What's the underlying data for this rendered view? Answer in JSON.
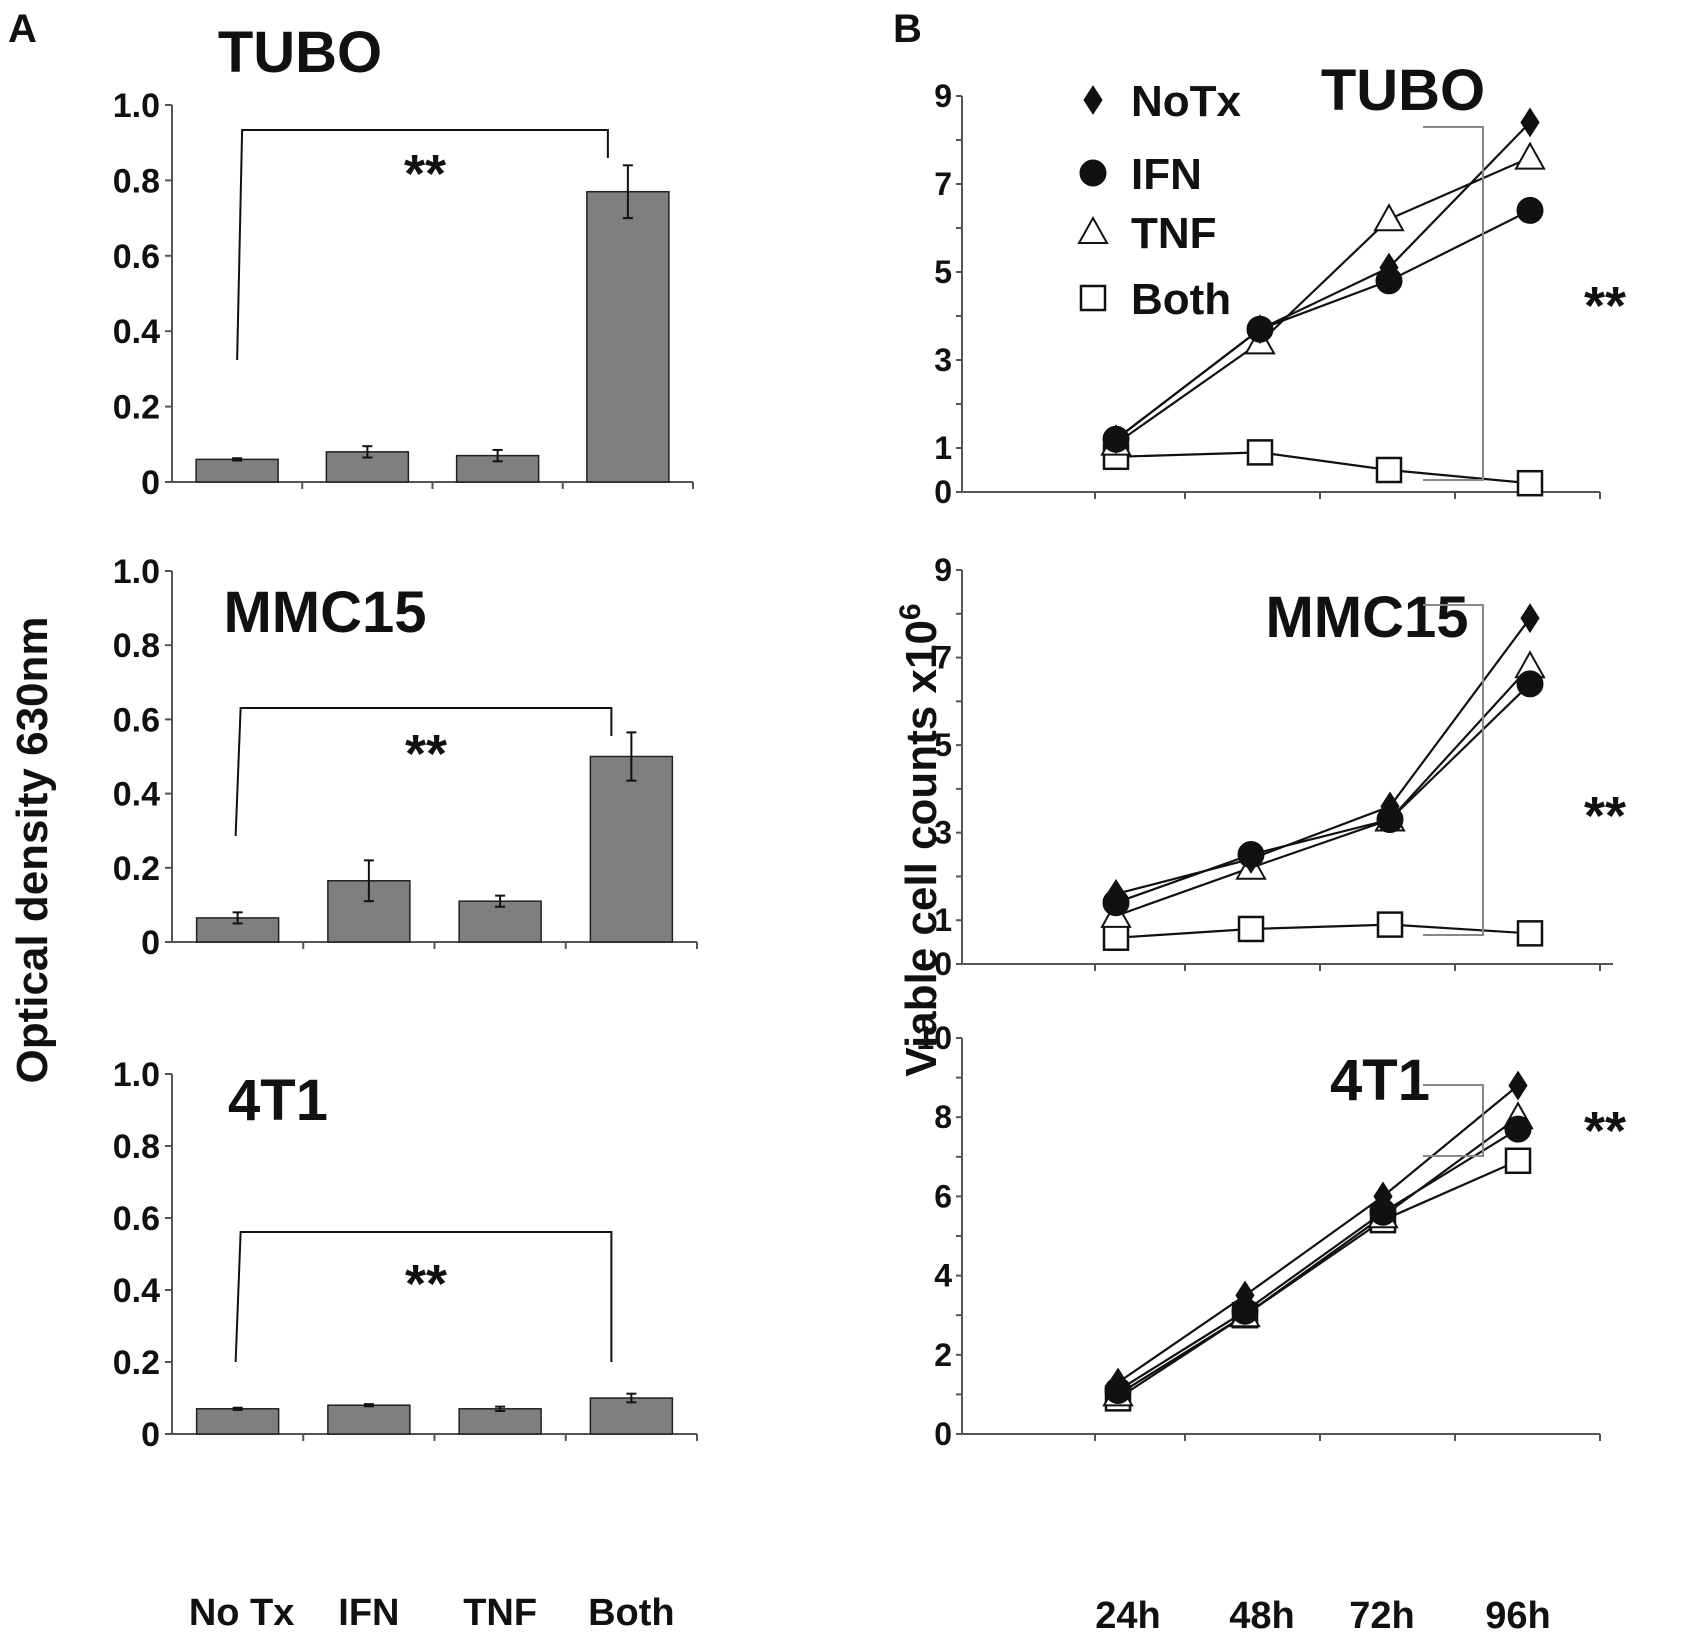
{
  "panel_labels": [
    "A",
    "B"
  ],
  "panel_a": {
    "ylabel": "Optical density 630nm",
    "categories": [
      "No Tx",
      "IFN",
      "TNF",
      "Both"
    ]
  },
  "panel_b": {
    "ylabel": "Viable cell counts x10",
    "ylabel_sup": "6",
    "timepoints": [
      "24h",
      "48h",
      "72h",
      "96h"
    ],
    "legend": [
      {
        "label": "NoTx",
        "marker": "diamond-filled"
      },
      {
        "label": "IFN",
        "marker": "circle-filled"
      },
      {
        "label": "TNF",
        "marker": "triangle-open"
      },
      {
        "label": "Both",
        "marker": "square-open"
      }
    ]
  },
  "colors": {
    "bar_fill": "#7f7f7f",
    "ink": "#111111"
  },
  "chart_data": [
    {
      "type": "bar",
      "panel": "A",
      "title": "TUBO",
      "categories": [
        "No Tx",
        "IFN",
        "TNF",
        "Both"
      ],
      "values": [
        0.06,
        0.08,
        0.07,
        0.77
      ],
      "errors": [
        0.003,
        0.015,
        0.015,
        0.07
      ],
      "ylim": [
        0,
        1.0
      ],
      "yticks": [
        "0",
        "0.2",
        "0.4",
        "0.6",
        "0.8",
        "1.0"
      ],
      "yticks_values": [
        0,
        0.2,
        0.4,
        0.6,
        0.8,
        1.0
      ],
      "significance": "**"
    },
    {
      "type": "bar",
      "panel": "A",
      "title": "MMC15",
      "categories": [
        "No Tx",
        "IFN",
        "TNF",
        "Both"
      ],
      "values": [
        0.065,
        0.165,
        0.11,
        0.5
      ],
      "errors": [
        0.015,
        0.055,
        0.015,
        0.065
      ],
      "ylim": [
        0,
        1.0
      ],
      "yticks": [
        "0",
        "0.2",
        "0.4",
        "0.6",
        "0.8",
        "1.0"
      ],
      "yticks_values": [
        0,
        0.2,
        0.4,
        0.6,
        0.8,
        1.0
      ],
      "significance": "**"
    },
    {
      "type": "bar",
      "panel": "A",
      "title": "4T1",
      "categories": [
        "No Tx",
        "IFN",
        "TNF",
        "Both"
      ],
      "values": [
        0.07,
        0.08,
        0.07,
        0.1
      ],
      "errors": [
        0.003,
        0.003,
        0.006,
        0.012
      ],
      "ylim": [
        0,
        1.0
      ],
      "yticks": [
        "0",
        "0.2",
        "0.4",
        "0.6",
        "0.8",
        "1.0"
      ],
      "yticks_values": [
        0,
        0.2,
        0.4,
        0.6,
        0.8,
        1.0
      ],
      "significance": "**"
    },
    {
      "type": "line",
      "panel": "B",
      "title": "TUBO",
      "x": [
        "24h",
        "48h",
        "72h",
        "96h"
      ],
      "ylim": [
        0,
        9
      ],
      "yticks": [
        "0",
        "1",
        "3",
        "5",
        "7",
        "9"
      ],
      "yticks_values": [
        0,
        1,
        3,
        5,
        7,
        9
      ],
      "series": [
        {
          "name": "NoTx",
          "values": [
            1.2,
            3.7,
            5.1,
            8.4
          ]
        },
        {
          "name": "IFN",
          "values": [
            1.2,
            3.7,
            4.8,
            6.4
          ]
        },
        {
          "name": "TNF",
          "values": [
            1.1,
            3.4,
            6.2,
            7.6
          ]
        },
        {
          "name": "Both",
          "values": [
            0.8,
            0.9,
            0.5,
            0.2
          ]
        }
      ],
      "significance": "**"
    },
    {
      "type": "line",
      "panel": "B",
      "title": "MMC15",
      "x": [
        "24h",
        "48h",
        "72h",
        "96h"
      ],
      "ylim": [
        0,
        9
      ],
      "yticks": [
        "0",
        "1",
        "3",
        "5",
        "7",
        "9"
      ],
      "yticks_values": [
        0,
        1,
        3,
        5,
        7,
        9
      ],
      "series": [
        {
          "name": "NoTx",
          "values": [
            1.6,
            2.4,
            3.6,
            7.9
          ]
        },
        {
          "name": "IFN",
          "values": [
            1.4,
            2.5,
            3.3,
            6.4
          ]
        },
        {
          "name": "TNF",
          "values": [
            1.1,
            2.2,
            3.3,
            6.8
          ]
        },
        {
          "name": "Both",
          "values": [
            0.6,
            0.8,
            0.9,
            0.7
          ]
        }
      ],
      "significance": "**"
    },
    {
      "type": "line",
      "panel": "B",
      "title": "4T1",
      "x": [
        "24h",
        "48h",
        "72h",
        "96h"
      ],
      "ylim": [
        0,
        10
      ],
      "yticks": [
        "0",
        "2",
        "4",
        "6",
        "8",
        "10"
      ],
      "yticks_values": [
        0,
        2,
        4,
        6,
        8,
        10
      ],
      "series": [
        {
          "name": "NoTx",
          "values": [
            1.3,
            3.5,
            6.0,
            8.8
          ]
        },
        {
          "name": "IFN",
          "values": [
            1.1,
            3.1,
            5.6,
            7.7
          ]
        },
        {
          "name": "TNF",
          "values": [
            1.0,
            3.0,
            5.5,
            8.0
          ]
        },
        {
          "name": "Both",
          "values": [
            0.9,
            3.0,
            5.4,
            6.9
          ]
        }
      ],
      "significance": "**"
    }
  ]
}
